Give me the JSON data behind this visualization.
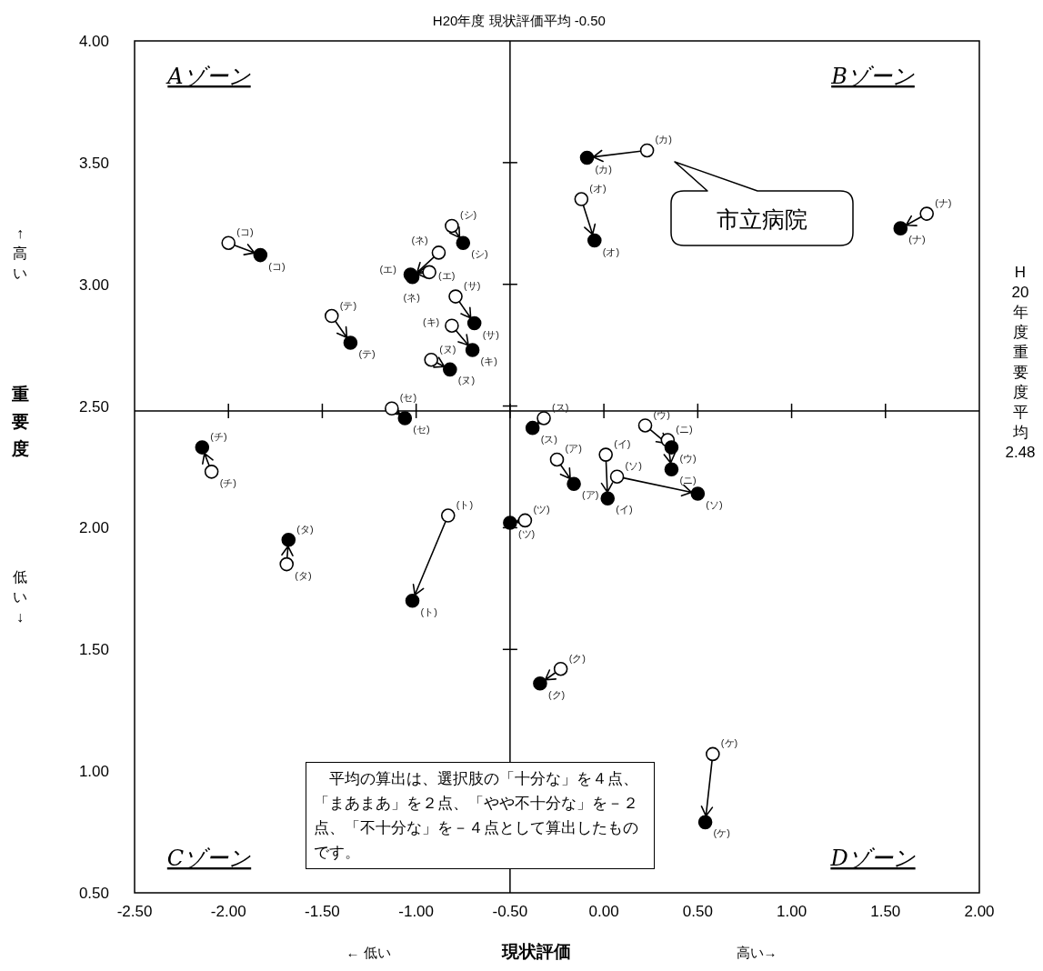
{
  "chart_data": {
    "type": "scatter",
    "marker": "circle",
    "xlabel": "現状評価",
    "ylabel": "重要度",
    "xlim": [
      -2.5,
      2.0
    ],
    "ylim": [
      0.5,
      4.0
    ],
    "xticks": [
      {
        "value": -2.5,
        "label": "-2.50"
      },
      {
        "value": -2.0,
        "label": "-2.00"
      },
      {
        "value": -1.5,
        "label": "-1.50"
      },
      {
        "value": -1.0,
        "label": "-1.00"
      },
      {
        "value": -0.5,
        "label": "-0.50"
      },
      {
        "value": 0,
        "label": "0.00"
      },
      {
        "value": 0.5,
        "label": "0.50"
      },
      {
        "value": 1.0,
        "label": "1.00"
      },
      {
        "value": 1.5,
        "label": "1.50"
      },
      {
        "value": 2.0,
        "label": "2.00"
      }
    ],
    "yticks": [
      {
        "value": 0.5,
        "label": "0.50"
      },
      {
        "value": 1.0,
        "label": "1.00"
      },
      {
        "value": 1.5,
        "label": "1.50"
      },
      {
        "value": 2.0,
        "label": "2.00"
      },
      {
        "value": 2.5,
        "label": "2.50"
      },
      {
        "value": 3.0,
        "label": "3.00"
      },
      {
        "value": 3.5,
        "label": "3.50"
      },
      {
        "value": 4.0,
        "label": "4.00"
      }
    ],
    "series": [
      {
        "type": "scatter",
        "color": "#ffffff",
        "x": [
          -0.25,
          0.01,
          0.22,
          -0.93,
          -0.12,
          0.23,
          -0.81,
          -0.23,
          0.58,
          -2.0,
          -0.79,
          -0.81,
          -0.32,
          -1.13,
          0.07,
          -1.69,
          -2.09,
          -0.42,
          -1.45,
          -0.83,
          1.72,
          0.34,
          -0.92,
          -0.88
        ],
        "values": [
          2.28,
          2.3,
          2.42,
          3.05,
          3.35,
          3.55,
          2.83,
          1.42,
          1.07,
          3.17,
          2.95,
          3.24,
          2.45,
          2.49,
          2.21,
          1.85,
          2.23,
          2.03,
          2.87,
          2.05,
          3.29,
          2.36,
          2.69,
          3.13
        ],
        "value_labels": [
          "(ア)",
          "(イ)",
          "(ウ)",
          "(エ)",
          "(オ)",
          "(カ)",
          "(キ)",
          "(ク)",
          "(ケ)",
          "(コ)",
          "(サ)",
          "(シ)",
          "(ス)",
          "(セ)",
          "(ソ)",
          "(タ)",
          "(チ)",
          "(ツ)",
          "(テ)",
          "(ト)",
          "(ナ)",
          "(ニ)",
          "(ヌ)",
          "(ネ)"
        ]
      },
      {
        "type": "scatter",
        "color": "#000000",
        "x": [
          -0.16,
          0.02,
          0.36,
          -1.03,
          -0.05,
          -0.09,
          -0.7,
          -0.34,
          0.54,
          -1.83,
          -0.69,
          -0.75,
          -0.38,
          -1.06,
          0.5,
          -1.68,
          -2.14,
          -0.5,
          -1.35,
          -1.02,
          1.58,
          0.36,
          -0.82,
          -1.02
        ],
        "values": [
          2.18,
          2.12,
          2.33,
          3.04,
          3.18,
          3.52,
          2.73,
          1.36,
          0.79,
          3.12,
          2.84,
          3.17,
          2.41,
          2.45,
          2.14,
          1.95,
          2.33,
          2.02,
          2.76,
          1.7,
          3.23,
          2.24,
          2.65,
          3.03
        ],
        "value_labels": [
          "(ア)",
          "(イ)",
          "(ウ)",
          "(エ)",
          "(オ)",
          "(カ)",
          "(キ)",
          "(ク)",
          "(ケ)",
          "(コ)",
          "(サ)",
          "(シ)",
          "(ス)",
          "(セ)",
          "(ソ)",
          "(タ)",
          "(チ)",
          "(ツ)",
          "(テ)",
          "(ト)",
          "(ナ)",
          "(ニ)",
          "(ヌ)",
          "(ネ)"
        ]
      }
    ],
    "ref_lines": [
      {
        "axis": "x",
        "value": -0.5,
        "label": "H20年度 現状評価平均 -0.50",
        "color": "#000000"
      },
      {
        "axis": "y",
        "value": 2.48,
        "label": "H20年度重要度平均2.48",
        "color": "#000000"
      }
    ],
    "annotations": [
      "Aゾーン",
      "Bゾーン",
      "Cゾーン",
      "Dゾーン",
      "　平均の算出は、選択肢の「十分な」を４点、「まあまあ」を２点、「やや不十分な」を－２点、「不十分な」を－４点として算出したものです。",
      "市立病院",
      "↑高い",
      "低い↓",
      "← 低い",
      "高い→"
    ]
  }
}
